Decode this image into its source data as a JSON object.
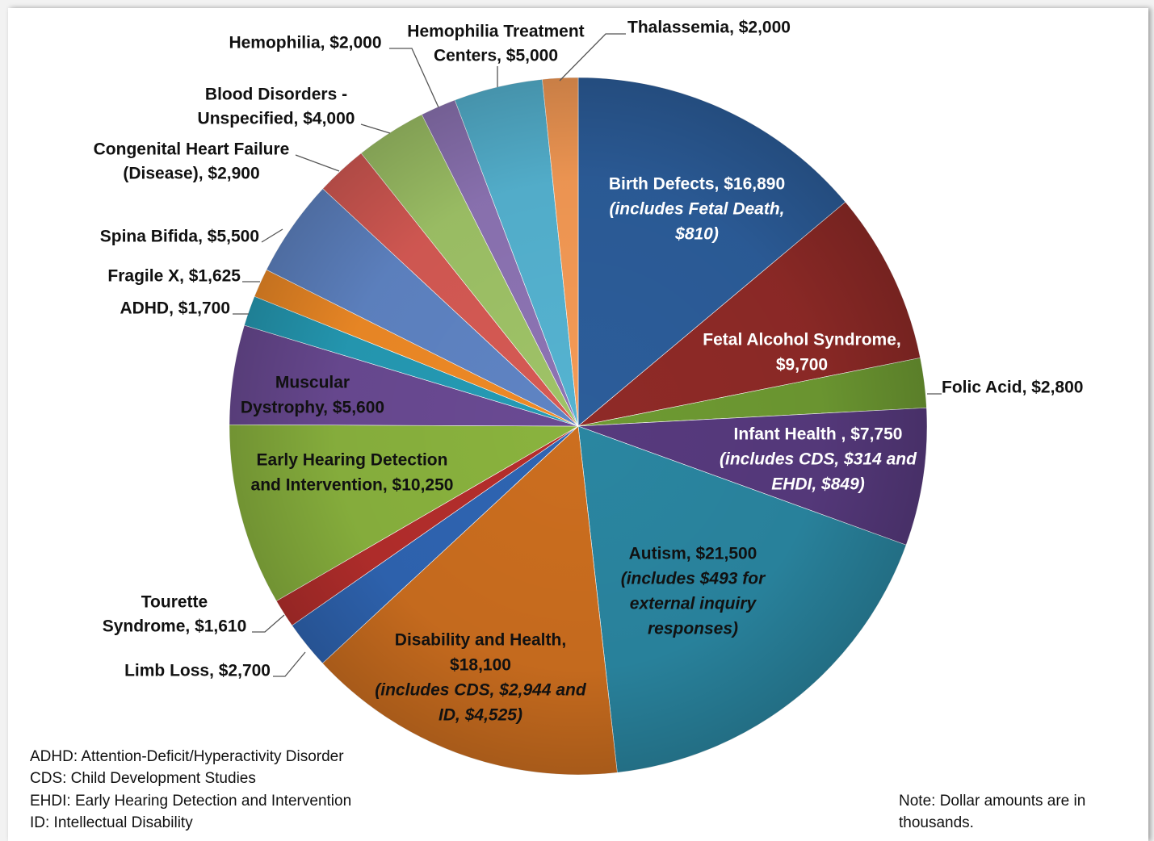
{
  "chart_data": {
    "type": "pie",
    "units_note": "Note: Dollar amounts are in thousands.",
    "slices": [
      {
        "name": "Birth Defects",
        "value": 16890,
        "color": "#2c5d9a",
        "label": [
          "Birth Defects, $16,890"
        ],
        "italic": [
          "(includes Fetal Death,",
          "$810)"
        ]
      },
      {
        "name": "Fetal Alcohol Syndrome",
        "value": 9700,
        "color": "#8f2a27",
        "label": [
          "Fetal Alcohol Syndrome,",
          "$9,700"
        ],
        "italic": []
      },
      {
        "name": "Folic Acid",
        "value": 2800,
        "color": "#6e9a32",
        "label": [
          "Folic Acid, $2,800"
        ],
        "italic": []
      },
      {
        "name": "Infant Health",
        "value": 7750,
        "color": "#573a7e",
        "label": [
          "Infant Health , $7,750"
        ],
        "italic": [
          "(includes CDS, $314 and",
          "EHDI, $849)"
        ]
      },
      {
        "name": "Autism",
        "value": 21500,
        "color": "#2a86a1",
        "label": [
          "Autism, $21,500"
        ],
        "italic": [
          "(includes $493 for",
          "external inquiry",
          "responses)"
        ]
      },
      {
        "name": "Disability and Health",
        "value": 18100,
        "color": "#cc6e1f",
        "label": [
          "Disability and Health,",
          "$18,100"
        ],
        "italic": [
          "(includes CDS, $2,944 and",
          "ID, $4,525)"
        ]
      },
      {
        "name": "Limb Loss",
        "value": 2700,
        "color": "#2f65b3",
        "label": [
          "Limb Loss, $2,700"
        ],
        "italic": []
      },
      {
        "name": "Tourette Syndrome",
        "value": 1610,
        "color": "#b52e2c",
        "label": [
          "Tourette",
          "Syndrome, $1,610"
        ],
        "italic": []
      },
      {
        "name": "Early Hearing Detection and Intervention",
        "value": 10250,
        "color": "#8ab33e",
        "label": [
          "Early Hearing Detection",
          "and Intervention, $10,250"
        ],
        "italic": []
      },
      {
        "name": "Muscular Dystrophy",
        "value": 5600,
        "color": "#6a4a93",
        "label": [
          "Muscular",
          "Dystrophy, $5,600"
        ],
        "italic": []
      },
      {
        "name": "ADHD",
        "value": 1700,
        "color": "#259bb5",
        "label": [
          "ADHD, $1,700"
        ],
        "italic": []
      },
      {
        "name": "Fragile X",
        "value": 1625,
        "color": "#ef8a26",
        "label": [
          "Fragile X, $1,625"
        ],
        "italic": []
      },
      {
        "name": "Spina Bifida",
        "value": 5500,
        "color": "#5f84c4",
        "label": [
          "Spina Bifida, $5,500"
        ],
        "italic": []
      },
      {
        "name": "Congenital Heart Failure (Disease)",
        "value": 2900,
        "color": "#d65a54",
        "label": [
          "Congenital Heart Failure",
          "(Disease), $2,900"
        ],
        "italic": []
      },
      {
        "name": "Blood Disorders - Unspecified",
        "value": 4000,
        "color": "#9fc367",
        "label": [
          "Blood Disorders -",
          "Unspecified, $4,000"
        ],
        "italic": []
      },
      {
        "name": "Hemophilia",
        "value": 2000,
        "color": "#8d74b4",
        "label": [
          "Hemophilia, $2,000"
        ],
        "italic": []
      },
      {
        "name": "Hemophilia Treatment Centers",
        "value": 5000,
        "color": "#55b3d1",
        "label": [
          "Hemophilia Treatment",
          "Centers, $5,000"
        ],
        "italic": []
      },
      {
        "name": "Thalassemia",
        "value": 2000,
        "color": "#f59a55",
        "label": [
          "Thalassemia, $2,000"
        ],
        "italic": []
      }
    ]
  },
  "abbreviations": [
    "ADHD: Attention-Deficit/Hyperactivity Disorder",
    "CDS: Child Development Studies",
    "EHDI: Early Hearing Detection and Intervention",
    "ID: Intellectual Disability"
  ]
}
